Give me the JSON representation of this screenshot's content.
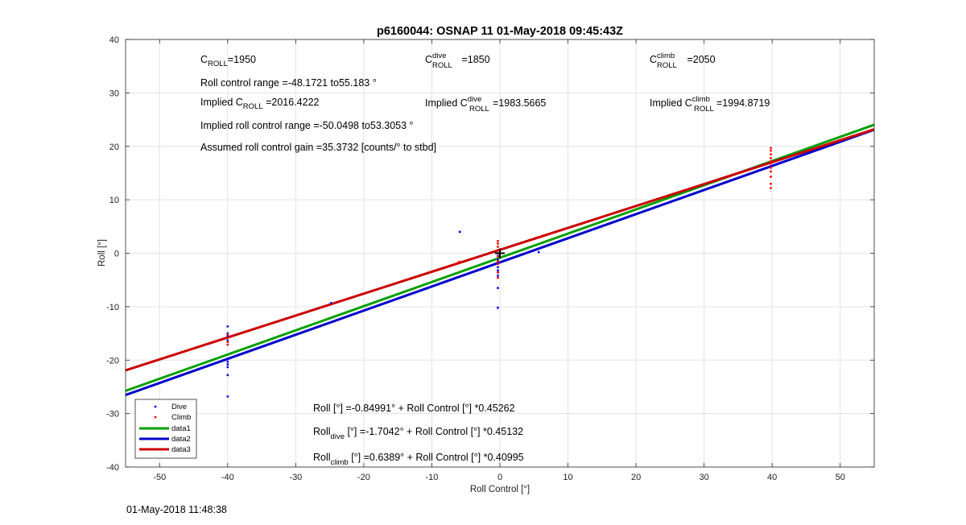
{
  "chart_data": {
    "type": "scatter",
    "title": "p6160044: OSNAP 11 01-May-2018 09:45:43Z",
    "xlabel": "Roll Control [°]",
    "ylabel": "Roll [°]",
    "xlim": [
      -55,
      55
    ],
    "ylim": [
      -40,
      40
    ],
    "xticks": [
      -50,
      -40,
      -30,
      -20,
      -10,
      0,
      10,
      20,
      30,
      40,
      50
    ],
    "yticks": [
      -40,
      -30,
      -20,
      -10,
      0,
      10,
      20,
      30,
      40
    ],
    "grid": true,
    "legend_position": "bottom-left",
    "series": [
      {
        "name": "Dive",
        "kind": "points",
        "color": "#0000ff",
        "points": [
          [
            -40,
            -13.7
          ],
          [
            -40,
            -15.0
          ],
          [
            -40,
            -15.4
          ],
          [
            -40,
            -16.3
          ],
          [
            -40,
            -19.8
          ],
          [
            -40,
            -20.3
          ],
          [
            -40,
            -20.8
          ],
          [
            -40,
            -21.3
          ],
          [
            -40,
            -22.8
          ],
          [
            -40,
            -26.8
          ],
          [
            -24.8,
            -9.3
          ],
          [
            -5.9,
            4.0
          ],
          [
            -0.3,
            -0.5
          ],
          [
            -0.3,
            -1.2
          ],
          [
            -0.3,
            -2.0
          ],
          [
            -0.3,
            -2.6
          ],
          [
            -0.3,
            -3.2
          ],
          [
            -0.3,
            -3.6
          ],
          [
            -0.3,
            -4.2
          ],
          [
            -0.3,
            -6.5
          ],
          [
            -0.3,
            -10.2
          ],
          [
            5.7,
            0.2
          ]
        ]
      },
      {
        "name": "Climb",
        "kind": "points",
        "color": "#ff0000",
        "points": [
          [
            -40,
            -15.2
          ],
          [
            -40,
            -16.6
          ],
          [
            -40,
            -17.1
          ],
          [
            -6.0,
            -1.6
          ],
          [
            -0.3,
            2.3
          ],
          [
            -0.3,
            1.8
          ],
          [
            -0.3,
            1.2
          ],
          [
            -0.3,
            0.6
          ],
          [
            -0.3,
            0.0
          ],
          [
            -0.3,
            -0.6
          ],
          [
            -0.3,
            -1.5
          ],
          [
            -0.3,
            -2.0
          ],
          [
            -0.3,
            -3.6
          ],
          [
            -0.3,
            -4.6
          ],
          [
            5.9,
            3.0
          ],
          [
            39.8,
            19.7
          ],
          [
            39.8,
            19.2
          ],
          [
            39.8,
            18.5
          ],
          [
            39.8,
            17.8
          ],
          [
            39.8,
            17.2
          ],
          [
            39.8,
            16.8
          ],
          [
            39.8,
            16.0
          ],
          [
            39.8,
            15.3
          ],
          [
            39.8,
            14.3
          ],
          [
            39.8,
            13.0
          ],
          [
            39.8,
            12.2
          ]
        ]
      },
      {
        "name": "data1",
        "kind": "line",
        "color": "#00a000",
        "intercept": -0.84991,
        "slope": 0.45262
      },
      {
        "name": "data2",
        "kind": "line",
        "color": "#0000cc",
        "intercept": -1.7042,
        "slope": 0.45132
      },
      {
        "name": "data3",
        "kind": "line",
        "color": "#cc0000",
        "intercept": 0.6389,
        "slope": 0.40995
      }
    ],
    "marker": {
      "symbol": "+",
      "x": 0,
      "y": 0,
      "color": "#000000"
    },
    "annotations": {
      "c_roll": {
        "main": "C",
        "sub": "ROLL",
        "rest": "=1950"
      },
      "c_roll_dive": {
        "main": "C",
        "sub": "ROLL",
        "sup": "dive",
        "rest": " =1850"
      },
      "c_roll_climb": {
        "main": "C",
        "sub": "ROLL",
        "sup": "climb",
        "rest": " =2050"
      },
      "roll_control_range": "Roll control range =-48.1721 to55.183 °",
      "implied_c_roll": {
        "prefix": "Implied C",
        "sub": "ROLL",
        "rest": " =2016.4222"
      },
      "implied_c_roll_dive": {
        "prefix": "Implied C",
        "sub": "ROLL",
        "sup": "dive",
        "rest": "=1983.5665"
      },
      "implied_c_roll_climb": {
        "prefix": "Implied C",
        "sub": "ROLL",
        "sup": "climb",
        "rest": "=1994.8719"
      },
      "implied_range": "Implied roll control range =-50.0498 to53.3053 °",
      "assumed_gain": "Assumed roll control gain =35.3732 [counts/° to stbd]",
      "eq_all": "Roll [°] =-0.84991° + Roll Control [°] *0.45262",
      "eq_dive": {
        "prefix": "Roll",
        "sub": "dive",
        "rest": " [°] =-1.7042° + Roll Control [°] *0.45132"
      },
      "eq_climb": {
        "prefix": "Roll",
        "sub": "climb",
        "rest": " [°] =0.6389° + Roll Control [°] *0.40995"
      }
    }
  },
  "footer_timestamp": "01-May-2018 11:48:38"
}
